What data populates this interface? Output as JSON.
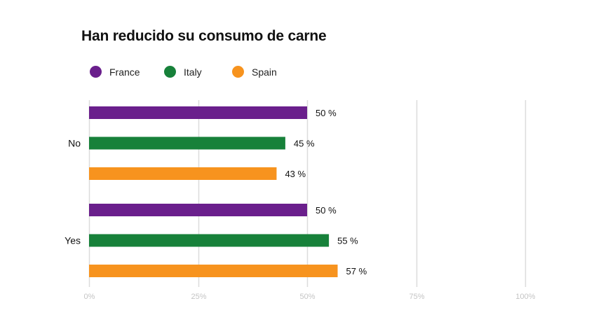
{
  "chart_data": {
    "type": "bar",
    "orientation": "horizontal",
    "title": "Han reducido su consumo de carne",
    "categories": [
      "No",
      "Yes"
    ],
    "series": [
      {
        "name": "France",
        "color": "#6a1f8c",
        "values": [
          50,
          50
        ],
        "labels": [
          "50 %",
          "50 %"
        ]
      },
      {
        "name": "Italy",
        "color": "#17813a",
        "values": [
          45,
          55
        ],
        "labels": [
          "45 %",
          "55 %"
        ]
      },
      {
        "name": "Spain",
        "color": "#f7931e",
        "values": [
          43,
          57
        ],
        "labels": [
          "43 %",
          "57 %"
        ]
      }
    ],
    "xlim": [
      0,
      100
    ],
    "xticks": [
      0,
      25,
      50,
      75,
      100
    ],
    "xtick_labels": [
      "0%",
      "25%",
      "50%",
      "75%",
      "100%"
    ],
    "xlabel": "",
    "ylabel": "",
    "grid": true,
    "legend_position": "top-left"
  }
}
